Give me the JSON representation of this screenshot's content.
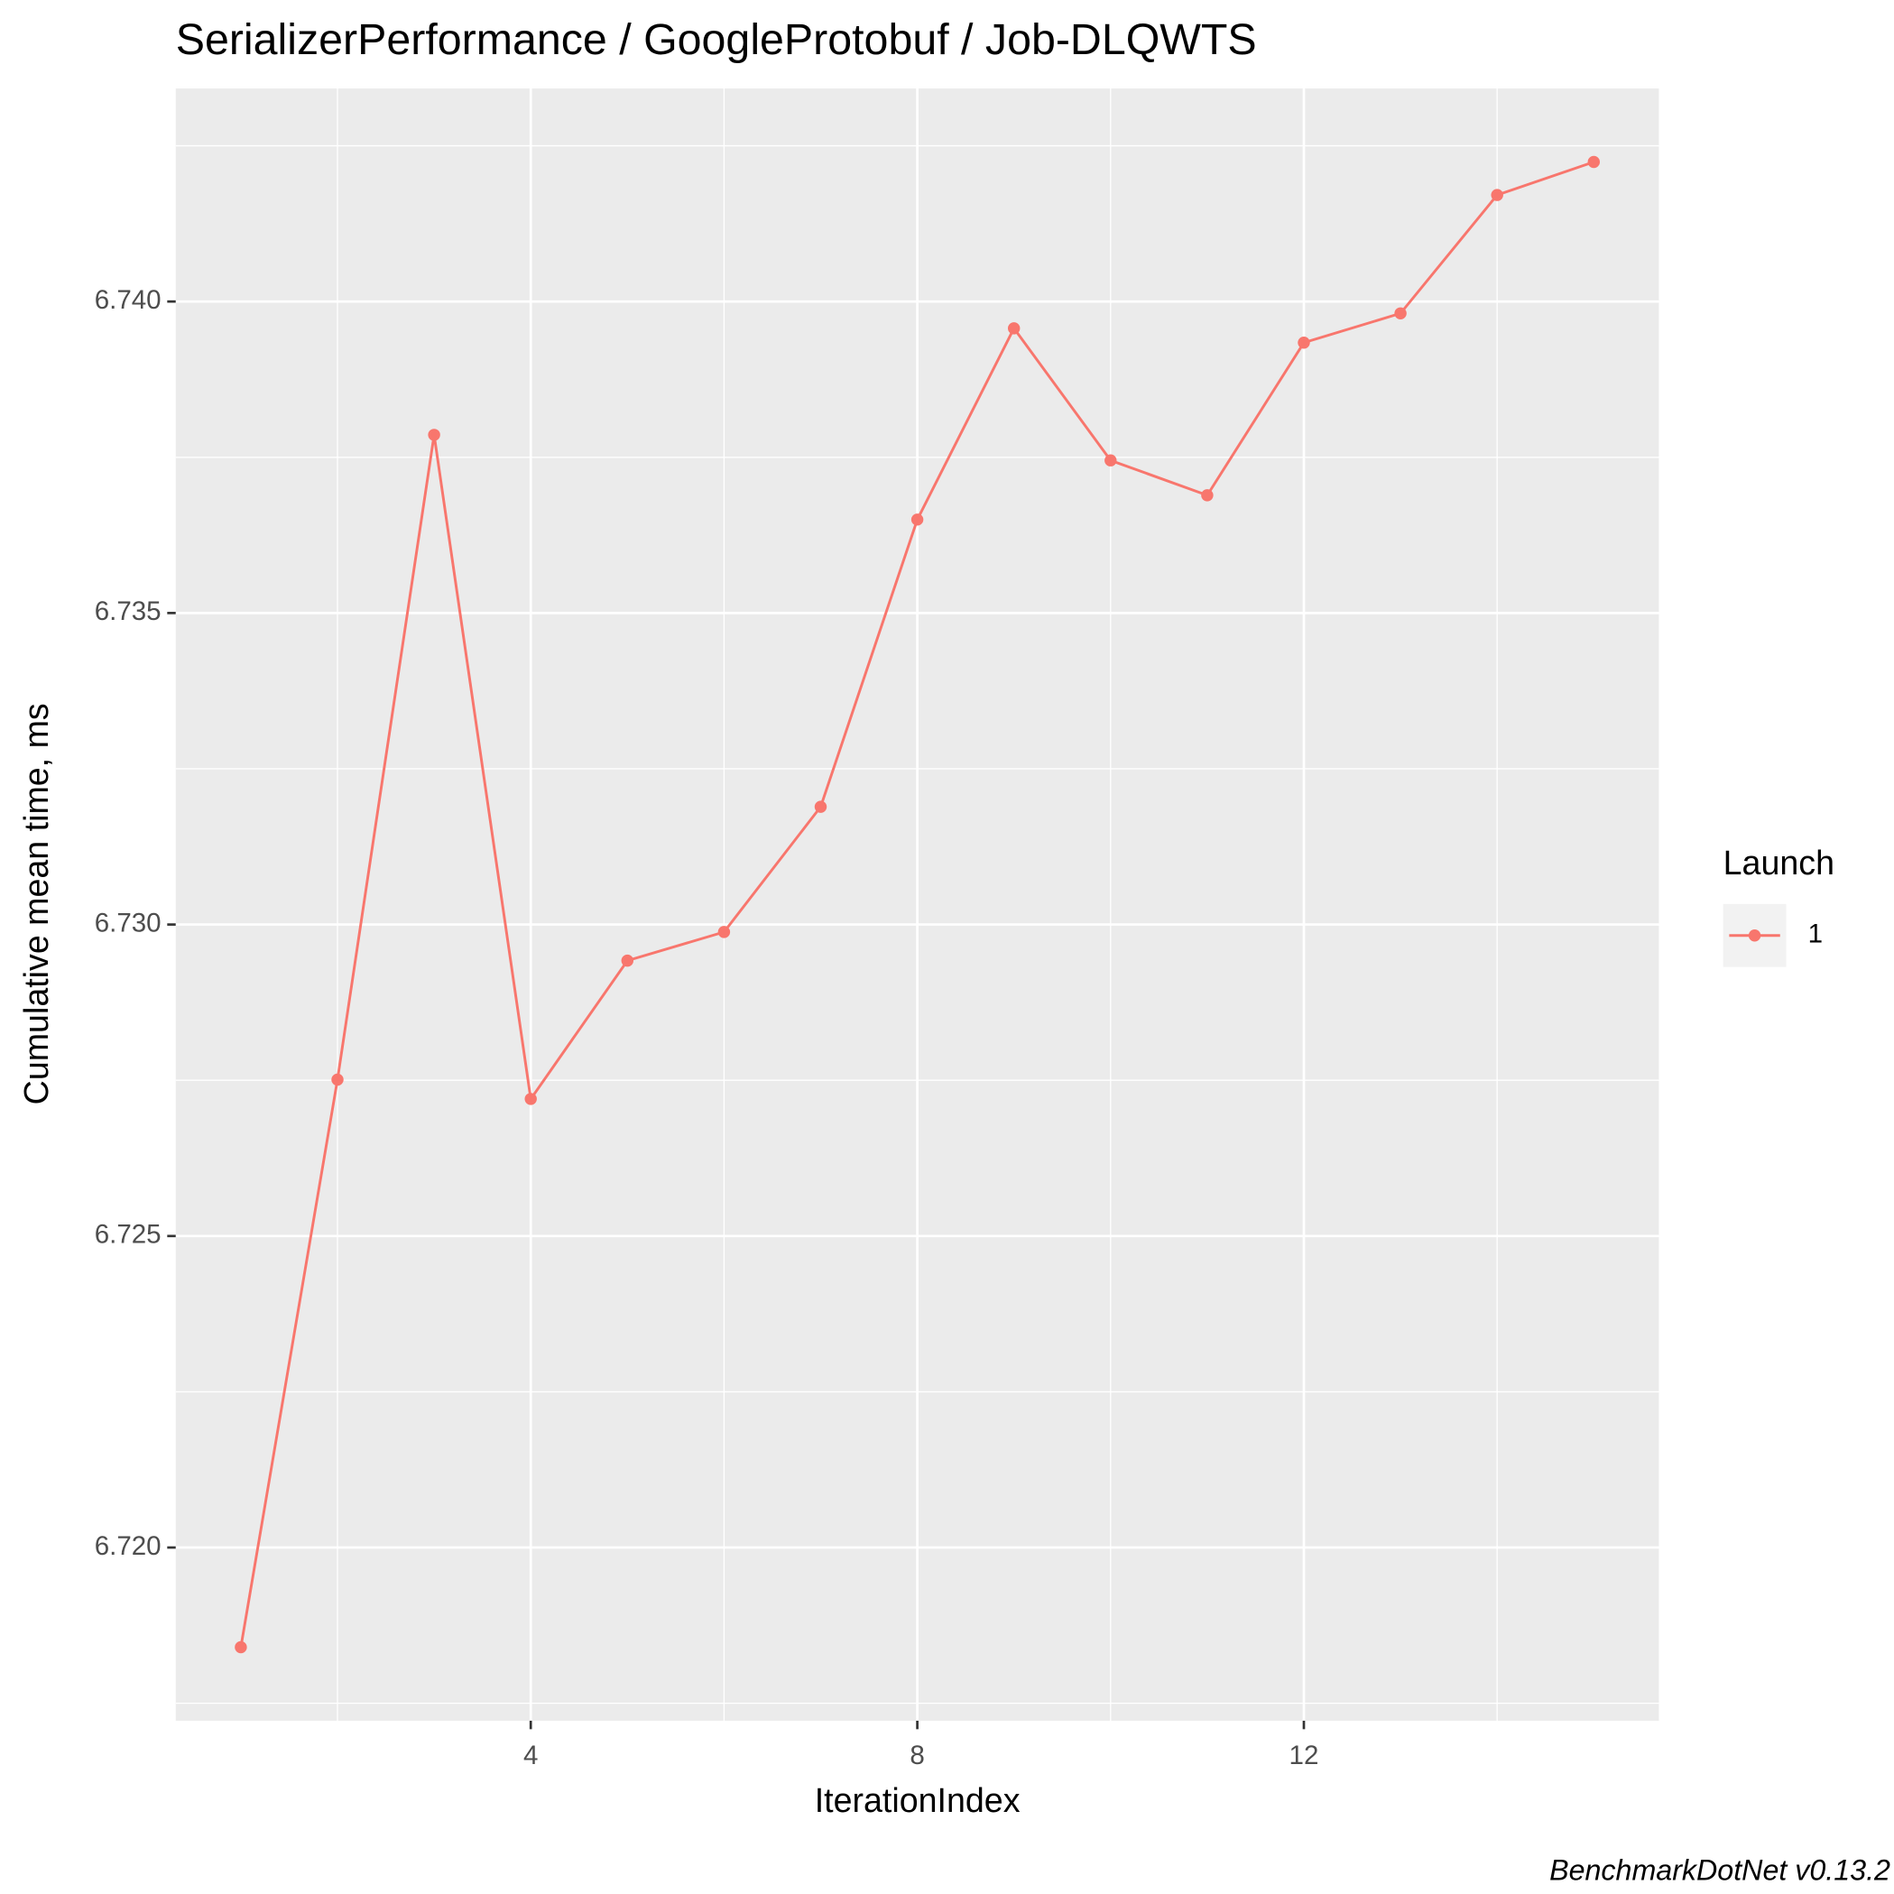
{
  "chart_data": {
    "type": "line",
    "title": "SerializerPerformance / GoogleProtobuf / Job-DLQWTS",
    "x_label": "IterationIndex",
    "y_label": "Cumulative mean time, ms",
    "caption": "BenchmarkDotNet v0.13.2",
    "legend_title": "Launch",
    "legend_position": "right",
    "grid": true,
    "x": [
      1,
      2,
      3,
      4,
      5,
      6,
      7,
      8,
      9,
      10,
      11,
      12,
      13,
      14,
      15
    ],
    "series": [
      {
        "name": "1",
        "color": "#F8766D",
        "values": [
          6.7184,
          6.72751,
          6.73786,
          6.7272,
          6.72942,
          6.72988,
          6.73189,
          6.7365,
          6.73957,
          6.73745,
          6.73689,
          6.73934,
          6.73981,
          6.74171,
          6.74224
        ]
      }
    ],
    "xlim": [
      0.326,
      15.674
    ],
    "xticks": [
      4,
      8,
      12
    ],
    "ylim": [
      6.71722,
      6.74342
    ],
    "yticks": [
      {
        "value": 6.72,
        "label": "6.720"
      },
      {
        "value": 6.725,
        "label": "6.725"
      },
      {
        "value": 6.73,
        "label": "6.730"
      },
      {
        "value": 6.735,
        "label": "6.735"
      },
      {
        "value": 6.74,
        "label": "6.740"
      }
    ]
  }
}
